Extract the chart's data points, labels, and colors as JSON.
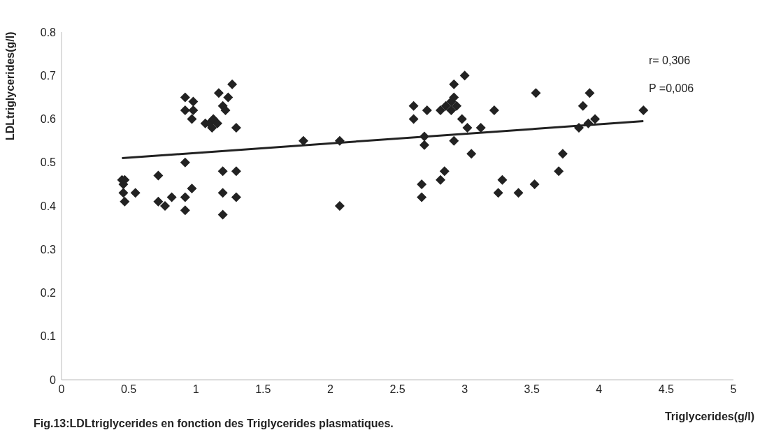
{
  "chart_data": {
    "type": "scatter",
    "xlabel": "Triglycerides(g/l)",
    "ylabel": "LDLtriglycerides(g/l)",
    "xlim": [
      0,
      5
    ],
    "xticks": [
      0,
      0.5,
      1,
      1.5,
      2,
      2.5,
      3,
      3.5,
      4,
      4.5,
      5
    ],
    "ylim": [
      0,
      0.8
    ],
    "yticks": [
      0,
      0.1,
      0.2,
      0.3,
      0.4,
      0.5,
      0.6,
      0.7,
      0.8
    ],
    "grid": false,
    "legend": false,
    "marker": "diamond",
    "annotations": [
      "r= 0,306",
      "P =0,006",
      "Fig.13:LDLtriglycerides en fonction des Triglycerides plasmatiques."
    ],
    "series": [
      {
        "color": "#222222",
        "x": [
          0.45,
          0.46,
          0.47,
          0.46,
          0.47,
          0.55,
          0.72,
          0.72,
          0.77,
          0.82,
          0.92,
          0.92,
          0.92,
          0.97,
          0.92,
          0.92,
          0.97,
          0.98,
          0.98,
          1.07,
          1.1,
          1.12,
          1.13,
          1.16,
          1.17,
          1.2,
          1.22,
          1.24,
          1.27,
          1.2,
          1.2,
          1.2,
          1.3,
          1.3,
          1.3,
          1.8,
          2.07,
          2.07,
          2.62,
          2.62,
          2.68,
          2.68,
          2.7,
          2.7,
          2.72,
          2.82,
          2.85,
          2.82,
          2.86,
          2.9,
          2.9,
          2.92,
          2.92,
          2.94,
          2.92,
          2.98,
          3.0,
          3.02,
          3.05,
          3.12,
          3.22,
          3.25,
          3.28,
          3.4,
          3.52,
          3.53,
          3.7,
          3.73,
          3.85,
          3.88,
          3.92,
          3.93,
          3.97,
          4.33
        ],
        "values": [
          0.46,
          0.45,
          0.46,
          0.43,
          0.41,
          0.43,
          0.47,
          0.41,
          0.4,
          0.42,
          0.39,
          0.42,
          0.5,
          0.44,
          0.65,
          0.62,
          0.6,
          0.64,
          0.62,
          0.59,
          0.59,
          0.58,
          0.6,
          0.59,
          0.66,
          0.63,
          0.62,
          0.65,
          0.68,
          0.48,
          0.43,
          0.38,
          0.58,
          0.48,
          0.42,
          0.55,
          0.55,
          0.4,
          0.63,
          0.6,
          0.45,
          0.42,
          0.54,
          0.56,
          0.62,
          0.46,
          0.48,
          0.62,
          0.63,
          0.62,
          0.64,
          0.65,
          0.68,
          0.63,
          0.55,
          0.6,
          0.7,
          0.58,
          0.52,
          0.58,
          0.62,
          0.43,
          0.46,
          0.43,
          0.45,
          0.66,
          0.48,
          0.52,
          0.58,
          0.63,
          0.59,
          0.66,
          0.6,
          0.62
        ]
      },
      {
        "type": "line",
        "color": "#222222",
        "marker": "none",
        "line_style": "solid",
        "x": [
          0.45,
          4.33
        ],
        "values": [
          0.51,
          0.595
        ]
      }
    ]
  }
}
